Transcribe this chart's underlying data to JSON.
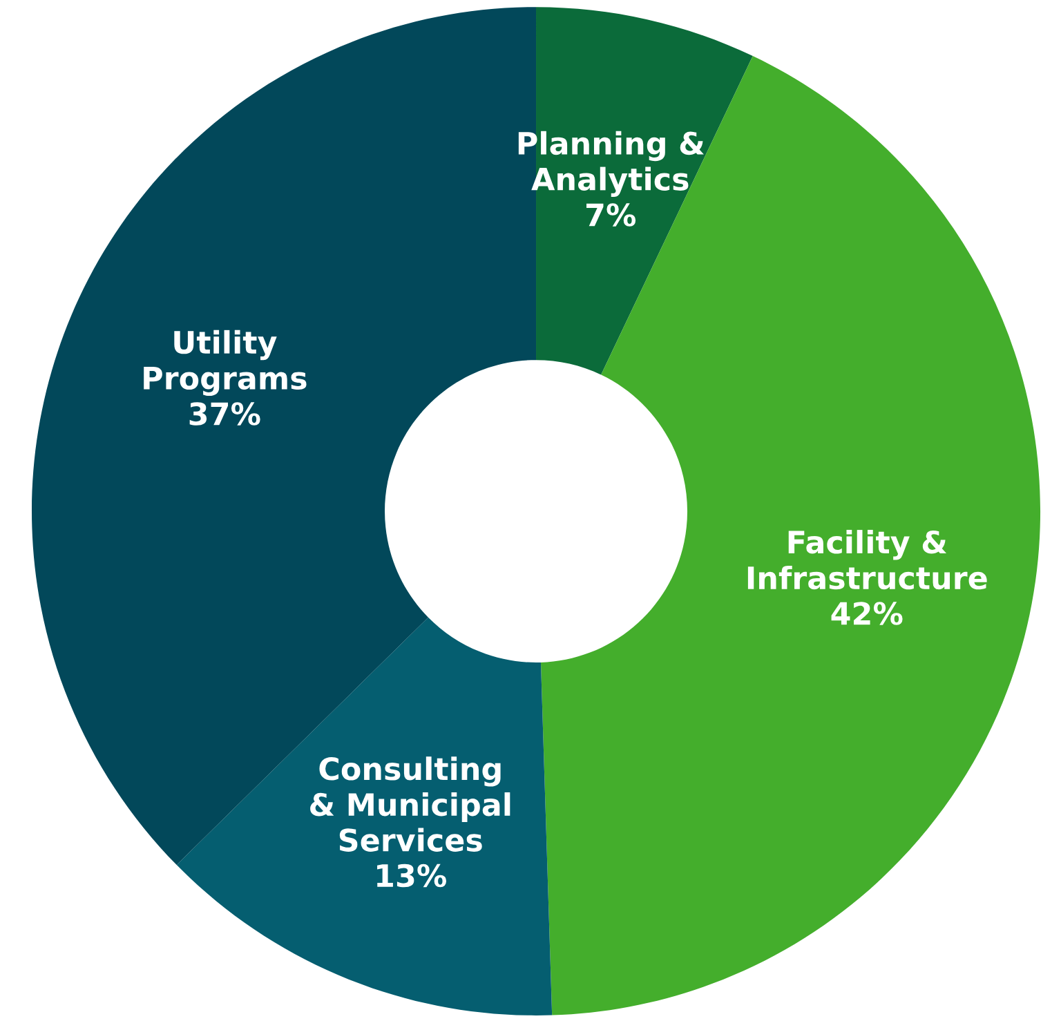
{
  "chart_data": {
    "type": "donut",
    "categories": [
      "Planning &\nAnalytics",
      "Facility &\nInfrastructure",
      "Consulting\n& Municipal\nServices",
      "Utility\nPrograms"
    ],
    "values": [
      7,
      42,
      13,
      37
    ],
    "value_labels": [
      "7%",
      "42%",
      "13%",
      "37%"
    ],
    "colors": [
      "#0b6b3a",
      "#44ae2c",
      "#055e70",
      "#02485a"
    ],
    "legend": false
  }
}
